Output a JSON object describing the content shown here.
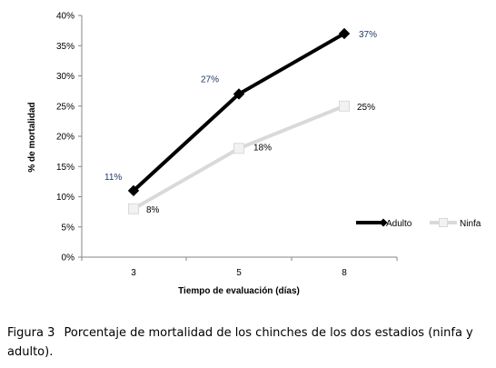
{
  "chart_data": {
    "type": "line",
    "title": "",
    "xlabel": "Tiempo de evaluación (días)",
    "ylabel": "% de mortalidad",
    "categories": [
      "3",
      "5",
      "8"
    ],
    "ylim": [
      0,
      40
    ],
    "yticks": [
      "0%",
      "5%",
      "10%",
      "15%",
      "20%",
      "25%",
      "30%",
      "35%",
      "40%"
    ],
    "grid": false,
    "legend_position": "right",
    "series": [
      {
        "name": "Adulto",
        "values": [
          11,
          27,
          37
        ],
        "labels": [
          "11%",
          "27%",
          "37%"
        ],
        "color": "#000000",
        "label_color": "#1f3864",
        "marker": "diamond"
      },
      {
        "name": "Ninfa",
        "values": [
          8,
          18,
          25
        ],
        "labels": [
          "8%",
          "18%",
          "25%"
        ],
        "color": "#d9d9d9",
        "label_color": "#000000",
        "marker": "square"
      }
    ]
  },
  "caption": {
    "label": "Figura 3",
    "text": "Porcentaje de mortalidad de los chinches de los dos estadios (ninfa y adulto)."
  }
}
